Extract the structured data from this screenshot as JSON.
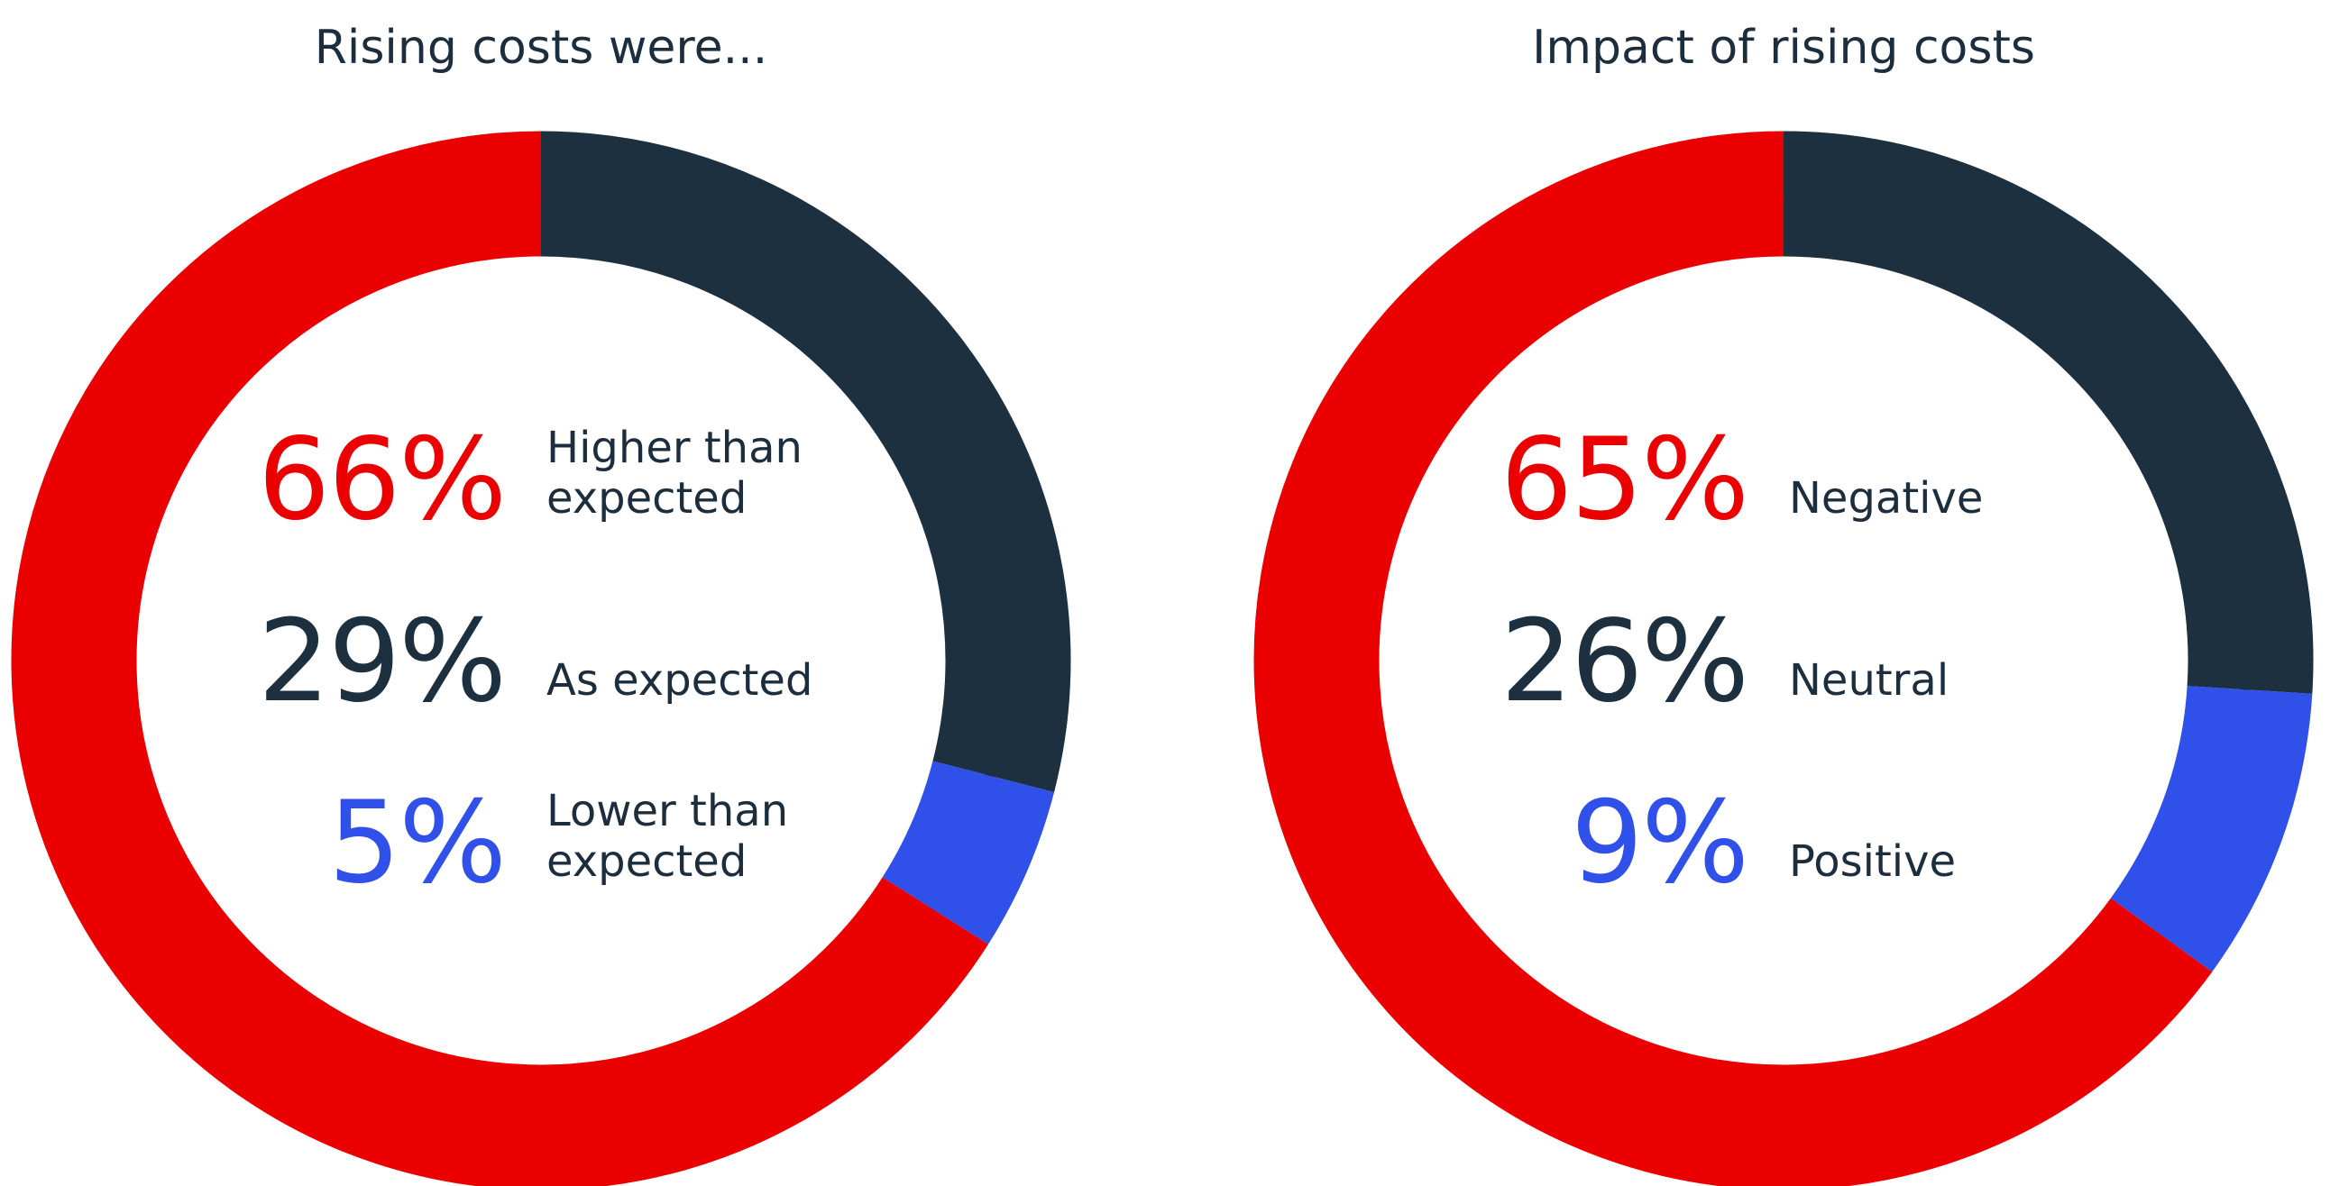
{
  "chart_data": [
    {
      "type": "donut",
      "title": "Rising costs were...",
      "categories": [
        "As expected",
        "Lower than expected",
        "Higher than expected"
      ],
      "values": [
        29,
        5,
        66
      ],
      "value_labels": [
        "29%",
        "5%",
        "66%"
      ],
      "colors": [
        "#1c3040",
        "#3050ea",
        "#ea0000"
      ]
    },
    {
      "type": "donut",
      "title": "Impact of rising costs",
      "categories": [
        "Neutral",
        "Positive",
        "Negative"
      ],
      "values": [
        26,
        9,
        65
      ],
      "value_labels": [
        "26%",
        "9%",
        "65%"
      ],
      "colors": [
        "#1c3040",
        "#3050ea",
        "#ea0000"
      ]
    }
  ]
}
